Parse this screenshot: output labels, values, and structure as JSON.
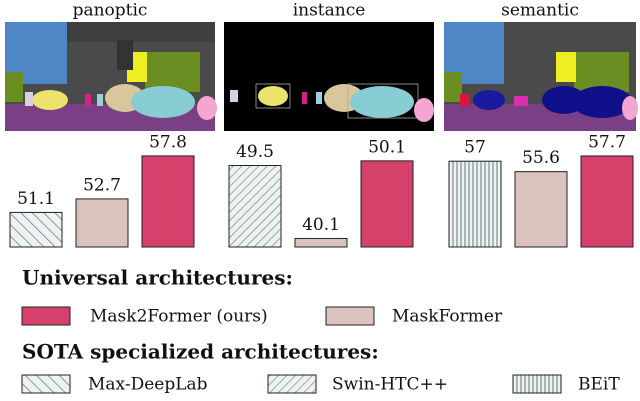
{
  "chart_data": [
    {
      "type": "bar",
      "title": "panoptic",
      "values": [
        51.1,
        52.7,
        57.8
      ],
      "bar_styles": [
        "backslash",
        "#d9c3bc",
        "#d6416b"
      ],
      "ylim": [
        47,
        58.5
      ]
    },
    {
      "type": "bar",
      "title": "instance",
      "values": [
        49.5,
        40.1,
        50.1
      ],
      "bar_styles": [
        "slash",
        "#d9c3bc",
        "#d6416b"
      ],
      "ylim": [
        39,
        51.5
      ]
    },
    {
      "type": "bar",
      "title": "semantic",
      "values": [
        57.0,
        55.6,
        57.7
      ],
      "bar_styles": [
        "vertical",
        "#d9c3bc",
        "#d6416b"
      ],
      "ylim": [
        45.5,
        58.5
      ]
    }
  ],
  "legend": {
    "groups": [
      {
        "title": "Universal architectures:",
        "entries": [
          {
            "name": "Mask2Former (ours)",
            "style": "#d6416b"
          },
          {
            "name": "MaskFormer",
            "style": "#d9c3bc"
          }
        ]
      },
      {
        "title": "SOTA specialized architectures:",
        "entries": [
          {
            "name": "Max-DeepLab",
            "style": "backslash"
          },
          {
            "name": "Swin-HTC++",
            "style": "slash"
          },
          {
            "name": "BEiT",
            "style": "vertical"
          }
        ]
      }
    ]
  }
}
